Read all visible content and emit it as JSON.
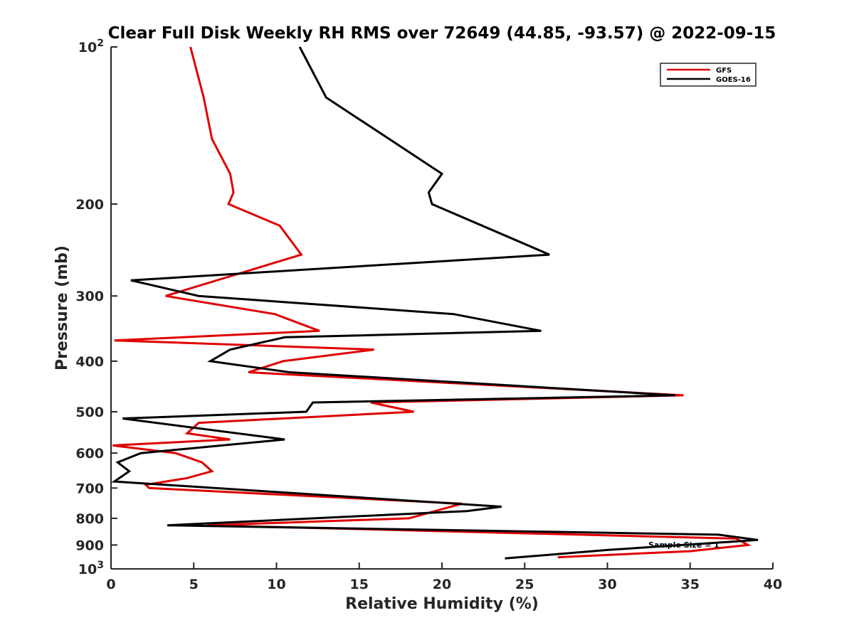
{
  "chart_data": {
    "type": "line",
    "title": "Clear Full Disk Weekly RH RMS over 72649 (44.85, -93.57) @ 2022-09-15",
    "xlabel": "Relative Humidity (%)",
    "ylabel": "Pressure (mb)",
    "xlim": [
      0,
      40
    ],
    "ylim": [
      100,
      1000
    ],
    "y_scale": "log",
    "y_reversed": true,
    "x_ticks": [
      0,
      5,
      10,
      15,
      20,
      25,
      30,
      35,
      40
    ],
    "x_tick_labels": [
      "0",
      "5",
      "10",
      "15",
      "20",
      "25",
      "30",
      "35",
      "40"
    ],
    "y_ticks": [
      {
        "value": 100,
        "base": "10",
        "exp": "2"
      },
      {
        "value": 200,
        "label": "200"
      },
      {
        "value": 300,
        "label": "300"
      },
      {
        "value": 400,
        "label": "400"
      },
      {
        "value": 500,
        "label": "500"
      },
      {
        "value": 600,
        "label": "600"
      },
      {
        "value": 700,
        "label": "700"
      },
      {
        "value": 800,
        "label": "800"
      },
      {
        "value": 900,
        "label": "900"
      },
      {
        "value": 1000,
        "base": "10",
        "exp": "3"
      }
    ],
    "grid": false,
    "legend_position": "top-right",
    "annotation": "Sample Size = 1",
    "series": [
      {
        "name": "GFS",
        "color": "#e00000",
        "points": [
          [
            4.8,
            100
          ],
          [
            5.6,
            125
          ],
          [
            6.1,
            150
          ],
          [
            7.2,
            175
          ],
          [
            7.4,
            190
          ],
          [
            7.1,
            200
          ],
          [
            10.2,
            220
          ],
          [
            11.5,
            250
          ],
          [
            7.2,
            275
          ],
          [
            3.3,
            300
          ],
          [
            9.9,
            325
          ],
          [
            12.6,
            350
          ],
          [
            0.2,
            365
          ],
          [
            15.9,
            380
          ],
          [
            10.4,
            400
          ],
          [
            8.3,
            420
          ],
          [
            34.6,
            465
          ],
          [
            15.7,
            480
          ],
          [
            18.3,
            500
          ],
          [
            5.3,
            525
          ],
          [
            4.6,
            550
          ],
          [
            7.2,
            565
          ],
          [
            0.1,
            580
          ],
          [
            3.9,
            600
          ],
          [
            5.5,
            625
          ],
          [
            6.1,
            650
          ],
          [
            4.6,
            670
          ],
          [
            2.1,
            690
          ],
          [
            2.3,
            700
          ],
          [
            21.2,
            750
          ],
          [
            18.0,
            800
          ],
          [
            5.8,
            825
          ],
          [
            37.8,
            875
          ],
          [
            38.5,
            900
          ],
          [
            35.0,
            925
          ],
          [
            27.0,
            950
          ]
        ]
      },
      {
        "name": "GOES-16",
        "color": "#000000",
        "points": [
          [
            11.4,
            100
          ],
          [
            13.0,
            125
          ],
          [
            16.8,
            150
          ],
          [
            20.0,
            175
          ],
          [
            19.2,
            190
          ],
          [
            19.4,
            200
          ],
          [
            26.5,
            250
          ],
          [
            1.2,
            280
          ],
          [
            5.3,
            300
          ],
          [
            20.7,
            325
          ],
          [
            26.0,
            350
          ],
          [
            10.5,
            360
          ],
          [
            7.2,
            380
          ],
          [
            6.0,
            400
          ],
          [
            10.8,
            420
          ],
          [
            34.1,
            465
          ],
          [
            12.2,
            480
          ],
          [
            11.8,
            500
          ],
          [
            0.7,
            515
          ],
          [
            10.5,
            565
          ],
          [
            1.8,
            600
          ],
          [
            0.4,
            625
          ],
          [
            1.1,
            650
          ],
          [
            0.2,
            680
          ],
          [
            23.6,
            760
          ],
          [
            21.5,
            775
          ],
          [
            3.4,
            825
          ],
          [
            36.7,
            860
          ],
          [
            39.1,
            880
          ],
          [
            30.0,
            920
          ],
          [
            23.8,
            955
          ]
        ]
      }
    ]
  }
}
